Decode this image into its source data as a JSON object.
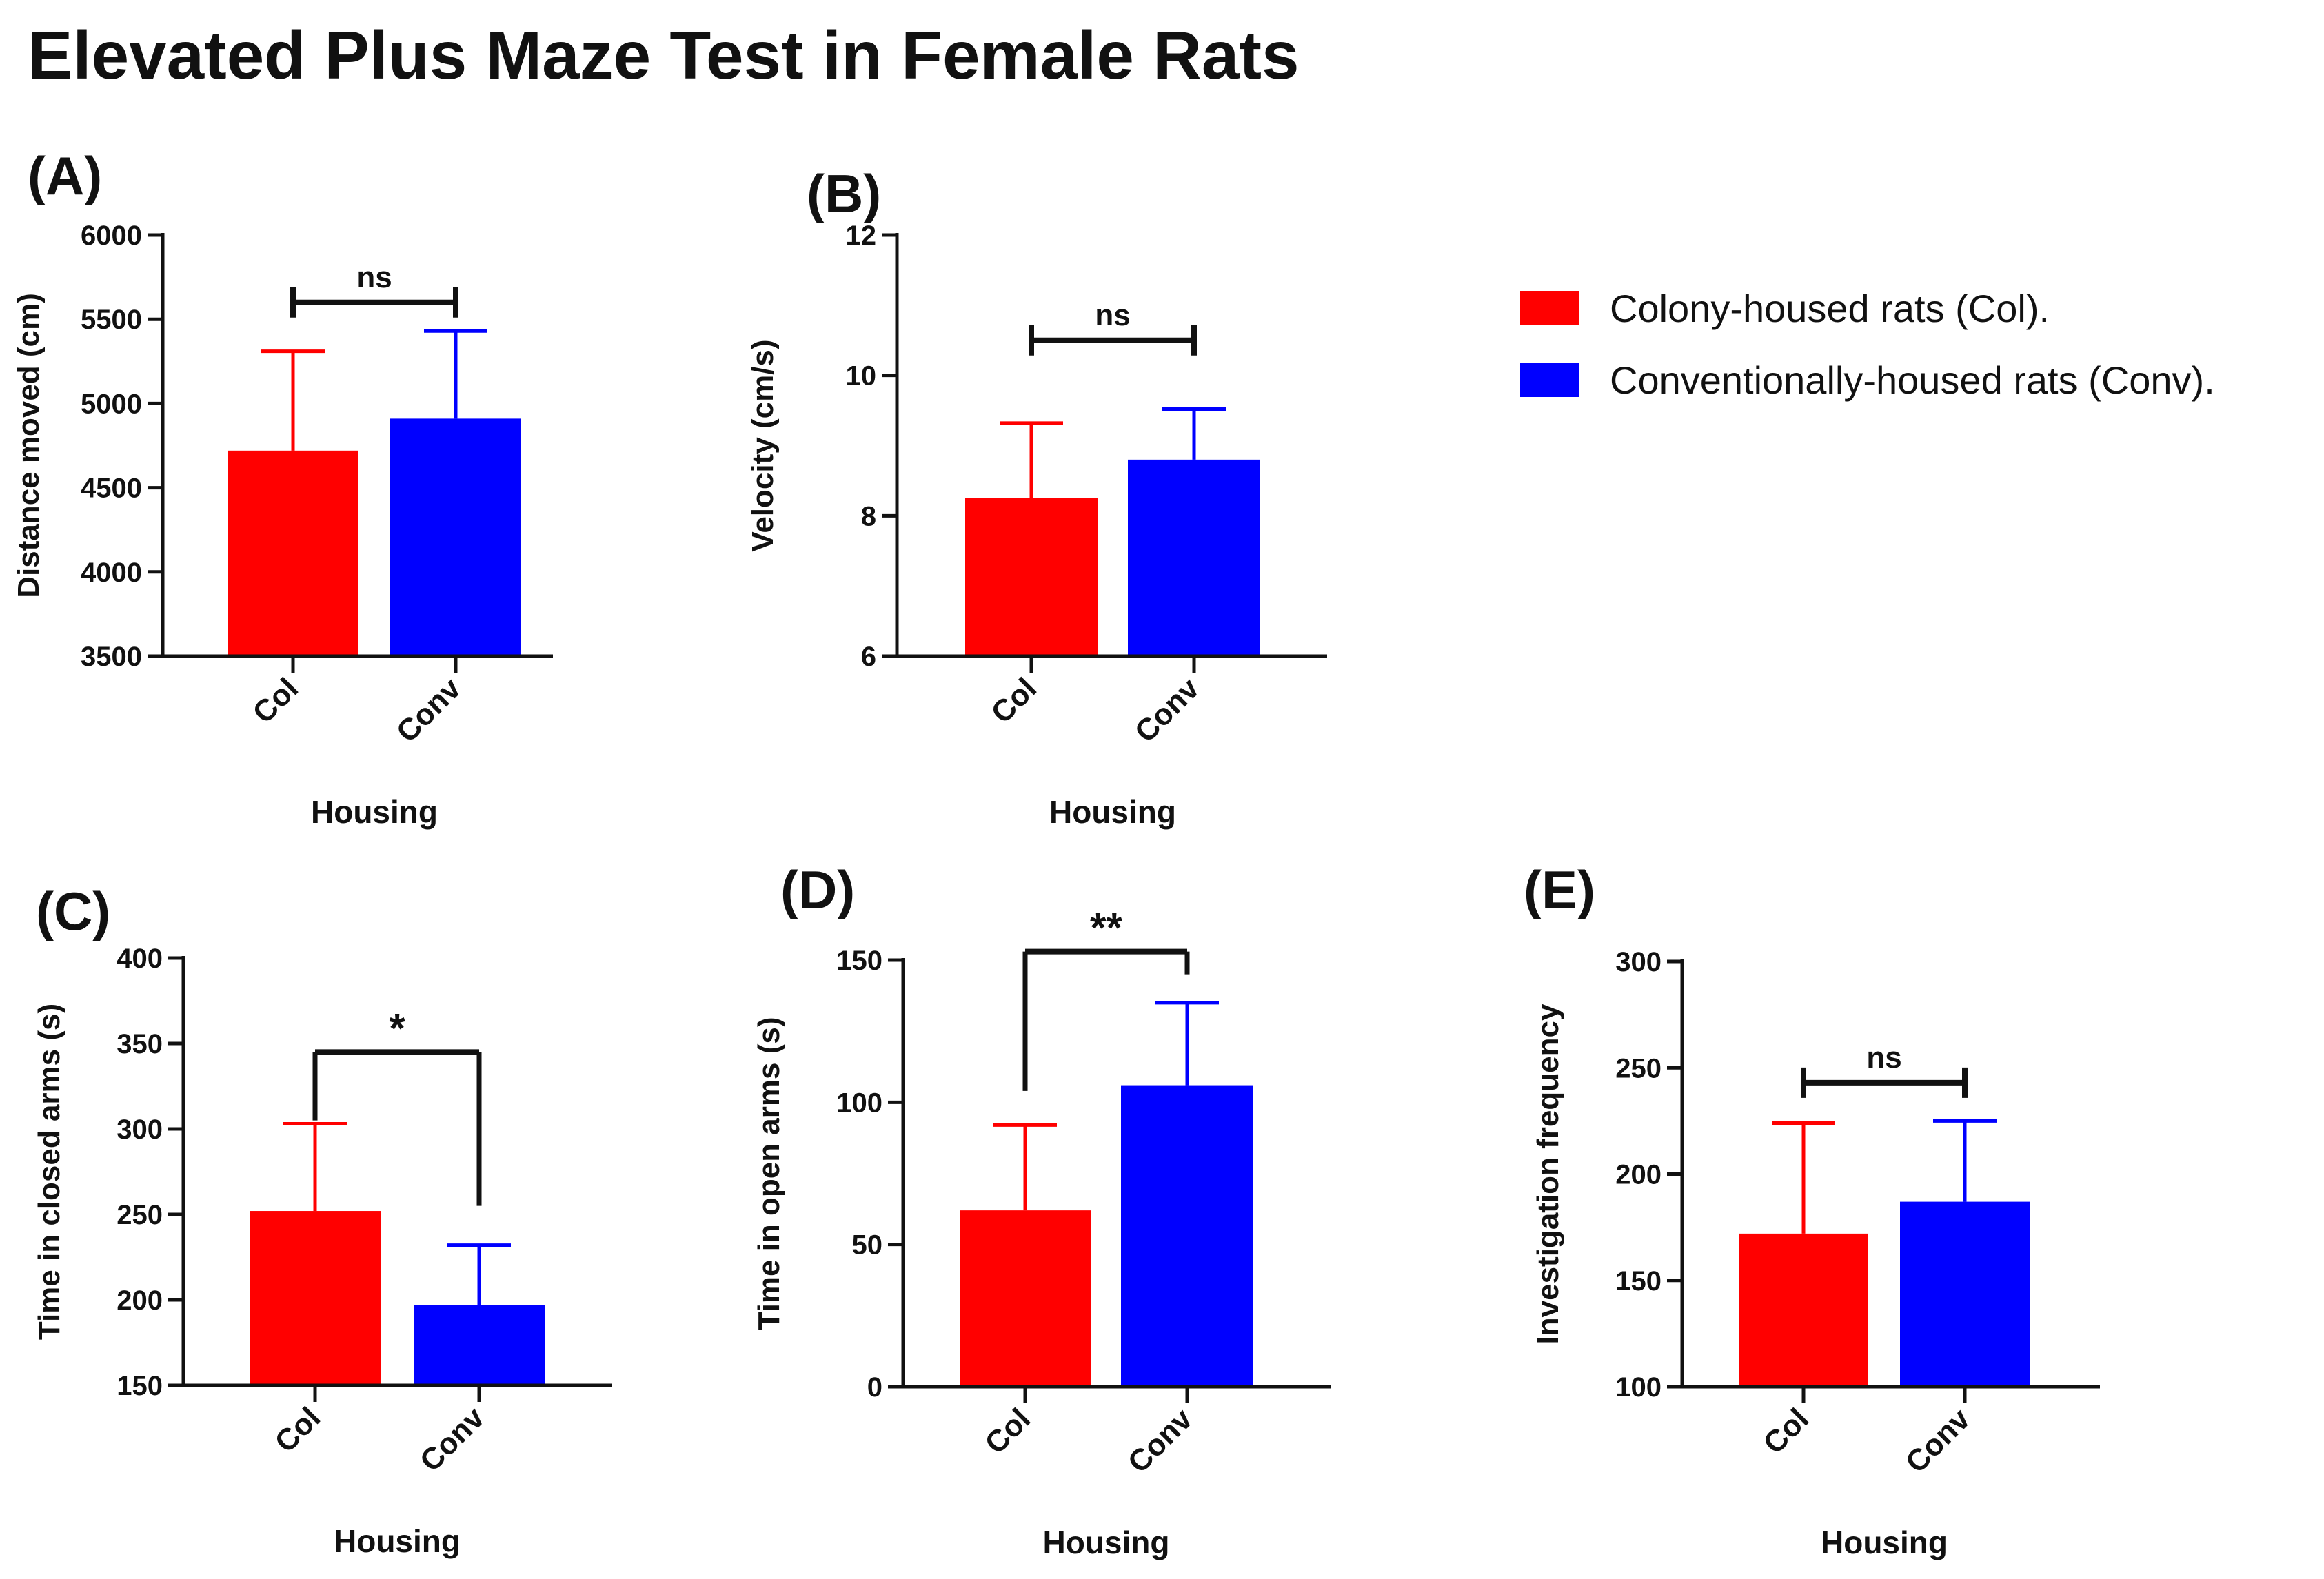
{
  "figure_title": "Elevated Plus Maze Test in Female Rats",
  "colors": {
    "col": "#ff0000",
    "conv": "#0000ff",
    "axis": "#111111"
  },
  "legend": [
    {
      "key": "col",
      "label": "Colony-housed rats (Col)."
    },
    {
      "key": "conv",
      "label": "Conventionally-housed rats (Conv)."
    }
  ],
  "chart_data": [
    {
      "panel": "(A)",
      "type": "bar",
      "categories": [
        "Col",
        "Conv"
      ],
      "values": [
        4720,
        4910
      ],
      "errors": [
        590,
        520
      ],
      "ylabel": "Distance moved (cm)",
      "xlabel": "Housing",
      "ylim": [
        3500,
        6000
      ],
      "yticks": [
        3500,
        4000,
        4500,
        5000,
        5500,
        6000
      ],
      "significance": {
        "label": "ns",
        "level": 5600,
        "style": "bracket"
      }
    },
    {
      "panel": "(B)",
      "type": "bar",
      "categories": [
        "Col",
        "Conv"
      ],
      "values": [
        8.25,
        8.8
      ],
      "errors": [
        1.07,
        0.72
      ],
      "ylabel": "Velocity (cm/s)",
      "xlabel": "Housing",
      "ylim": [
        6,
        12
      ],
      "yticks": [
        6,
        8,
        10,
        12
      ],
      "significance": {
        "label": "ns",
        "level": 10.5,
        "style": "bracket"
      }
    },
    {
      "panel": "(C)",
      "type": "bar",
      "categories": [
        "Col",
        "Conv"
      ],
      "values": [
        252,
        197
      ],
      "errors": [
        51,
        35
      ],
      "ylabel": "Time in closed arms (s)",
      "xlabel": "Housing",
      "ylim": [
        150,
        400
      ],
      "yticks": [
        150,
        200,
        250,
        300,
        350,
        400
      ],
      "significance": {
        "label": "*",
        "level": 345,
        "style": "long",
        "drop": [
          305,
          255
        ]
      }
    },
    {
      "panel": "(D)",
      "type": "bar",
      "categories": [
        "Col",
        "Conv"
      ],
      "values": [
        62,
        106
      ],
      "errors": [
        30,
        29
      ],
      "ylabel": "Time in open arms (s)",
      "xlabel": "Housing",
      "ylim": [
        0,
        150
      ],
      "yticks": [
        0,
        50,
        100,
        150
      ],
      "significance": {
        "label": "**",
        "level": 153,
        "style": "long",
        "drop": [
          104,
          145
        ]
      }
    },
    {
      "panel": "(E)",
      "type": "bar",
      "categories": [
        "Col",
        "Conv"
      ],
      "values": [
        172,
        187
      ],
      "errors": [
        52,
        38
      ],
      "ylabel": "Investigation frequency",
      "xlabel": "Housing",
      "ylim": [
        100,
        300
      ],
      "yticks": [
        100,
        150,
        200,
        250,
        300
      ],
      "significance": {
        "label": "ns",
        "level": 243,
        "style": "bracket"
      }
    }
  ]
}
